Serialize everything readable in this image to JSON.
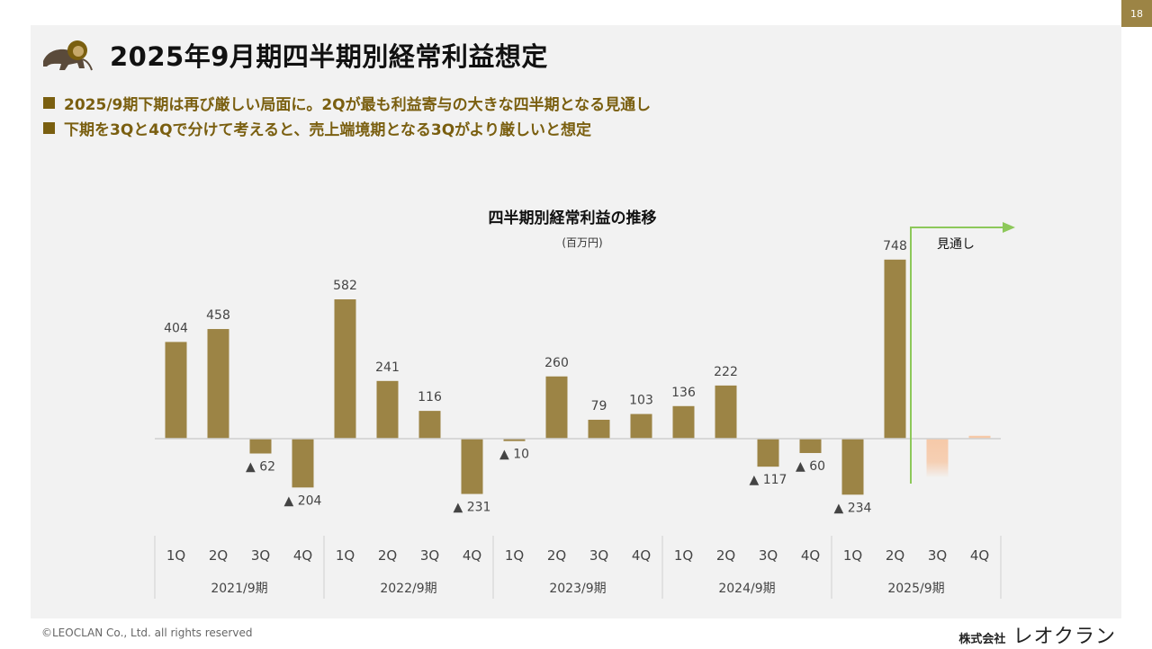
{
  "page_number": "18",
  "title": "2025年9月期四半期別経常利益想定",
  "bullets": [
    "2025/9期下期は再び厳しい局面に。2Qが最も利益寄与の大きな四半期となる見通し",
    "下期を3Qと4Qで分けて考えると、売上端境期となる3Qがより厳しいと想定"
  ],
  "chart_data": {
    "type": "bar",
    "title": "四半期別経常利益の推移",
    "unit": "(百万円)",
    "forecast_label": "見通し",
    "negative_marker": "▲",
    "colors": {
      "actual": "#9c8445",
      "forecast": "#f6c9a8",
      "arrow": "#8dc85a"
    },
    "groups": [
      "2021/9期",
      "2022/9期",
      "2023/9期",
      "2024/9期",
      "2025/9期"
    ],
    "quarters": [
      "1Q",
      "2Q",
      "3Q",
      "4Q"
    ],
    "values": [
      404,
      458,
      -62,
      -204,
      582,
      241,
      116,
      -231,
      -10,
      260,
      79,
      103,
      136,
      222,
      -117,
      -60,
      -234,
      748,
      -160,
      12
    ],
    "forecast": [
      false,
      false,
      false,
      false,
      false,
      false,
      false,
      false,
      false,
      false,
      false,
      false,
      false,
      false,
      false,
      false,
      false,
      false,
      true,
      true
    ],
    "show_label": [
      true,
      true,
      true,
      true,
      true,
      true,
      true,
      true,
      true,
      true,
      true,
      true,
      true,
      true,
      true,
      true,
      true,
      true,
      false,
      false
    ]
  },
  "footer": {
    "copyright": "©LEOCLAN Co., Ltd. all rights reserved",
    "company_prefix": "株式会社",
    "company_name": "レオクラン"
  }
}
